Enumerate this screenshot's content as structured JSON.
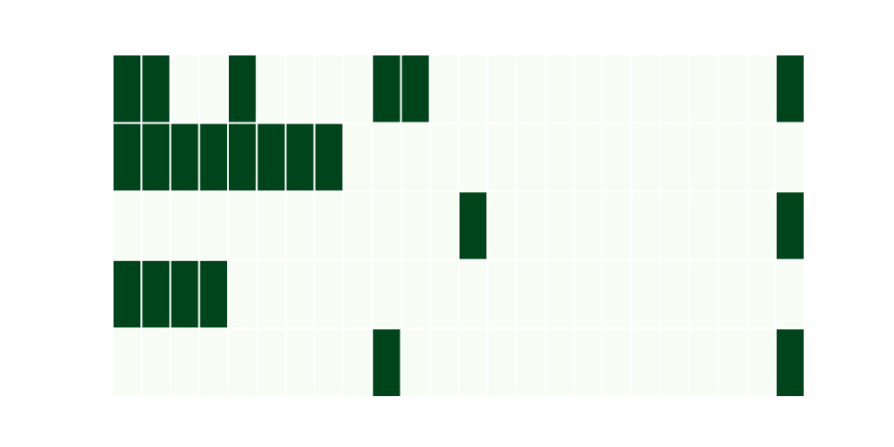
{
  "chart_data": {
    "type": "heatmap",
    "rows": 5,
    "cols": 24,
    "values": [
      [
        1,
        1,
        0,
        0,
        1,
        0,
        0,
        0,
        0,
        1,
        1,
        0,
        0,
        0,
        0,
        0,
        0,
        0,
        0,
        0,
        0,
        0,
        0,
        1
      ],
      [
        1,
        1,
        1,
        1,
        1,
        1,
        1,
        1,
        0,
        0,
        0,
        0,
        0,
        0,
        0,
        0,
        0,
        0,
        0,
        0,
        0,
        0,
        0,
        0
      ],
      [
        0,
        0,
        0,
        0,
        0,
        0,
        0,
        0,
        0,
        0,
        0,
        0,
        1,
        0,
        0,
        0,
        0,
        0,
        0,
        0,
        0,
        0,
        0,
        1
      ],
      [
        1,
        1,
        1,
        1,
        0,
        0,
        0,
        0,
        0,
        0,
        0,
        0,
        0,
        0,
        0,
        0,
        0,
        0,
        0,
        0,
        0,
        0,
        0,
        0
      ],
      [
        0,
        0,
        0,
        0,
        0,
        0,
        0,
        0,
        0,
        1,
        0,
        0,
        0,
        0,
        0,
        0,
        0,
        0,
        0,
        0,
        0,
        0,
        0,
        1
      ]
    ],
    "value_range": [
      0,
      1
    ],
    "colormap": "Greens",
    "colors": {
      "low": "#f7fcf5",
      "high": "#00441b",
      "cell_border": "#ffffff"
    },
    "grid": false,
    "legend": "none"
  }
}
